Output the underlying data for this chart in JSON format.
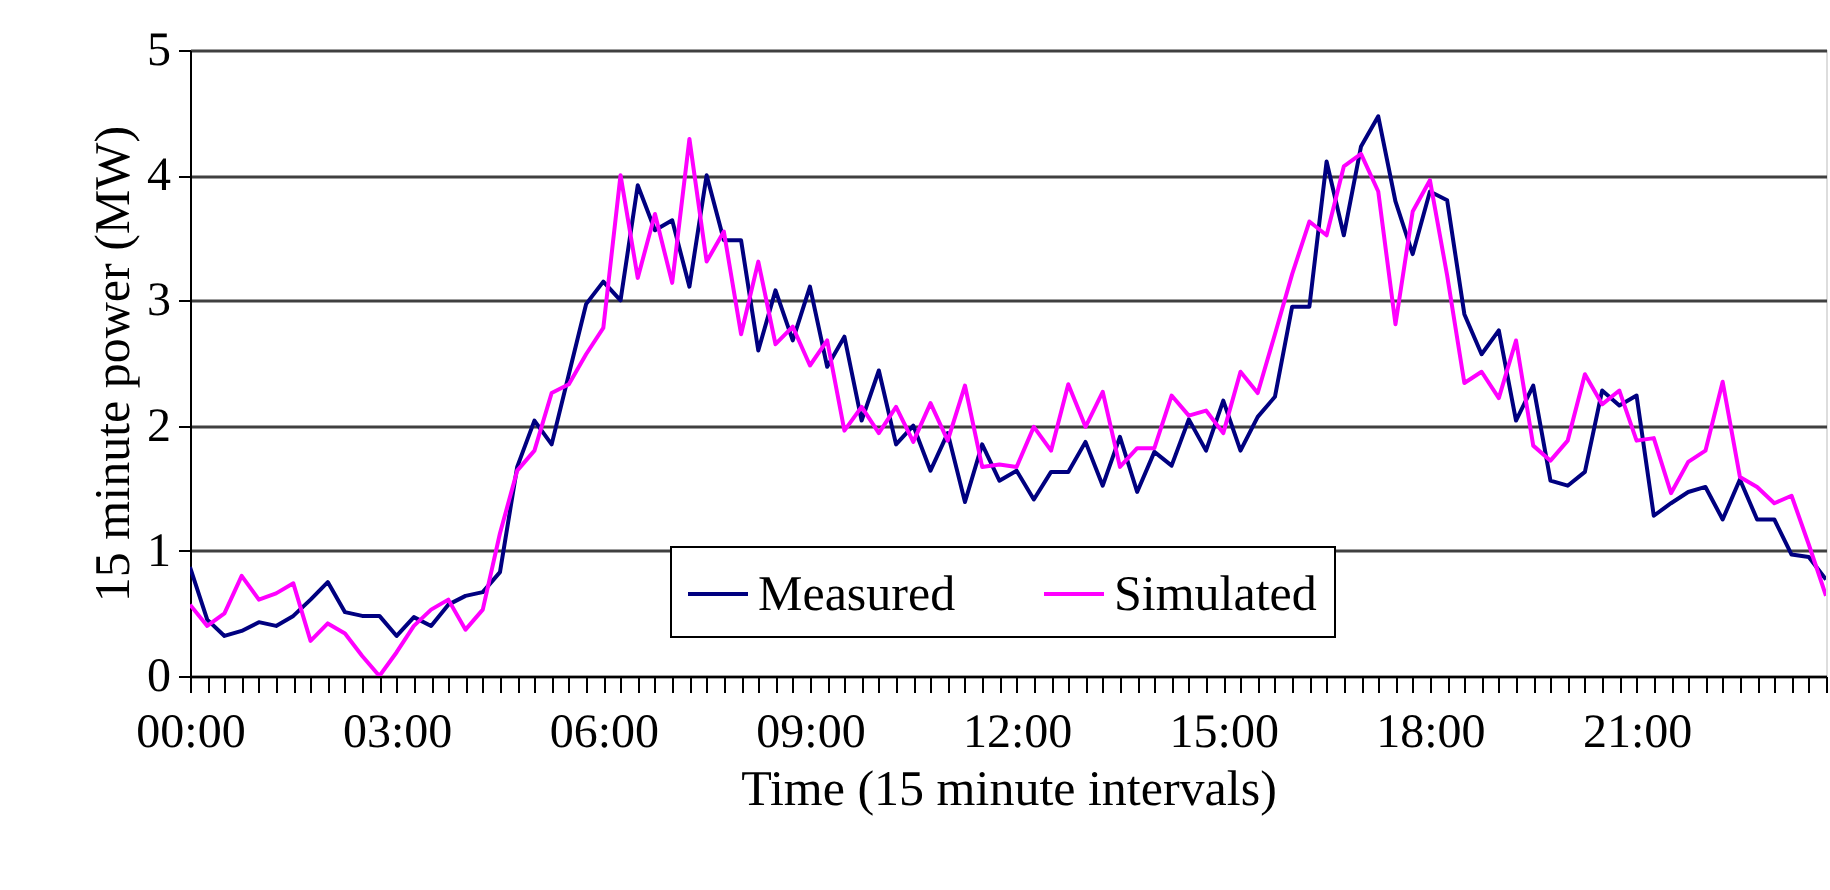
{
  "chart_data": {
    "type": "line",
    "xlabel": "Time (15 minute intervals)",
    "ylabel": "15 minute power (MW)",
    "categories": [
      "00:00",
      null,
      null,
      null,
      null,
      null,
      null,
      null,
      null,
      null,
      null,
      null,
      "03:00",
      null,
      null,
      null,
      null,
      null,
      null,
      null,
      null,
      null,
      null,
      null,
      "06:00",
      null,
      null,
      null,
      null,
      null,
      null,
      null,
      null,
      null,
      null,
      null,
      "09:00",
      null,
      null,
      null,
      null,
      null,
      null,
      null,
      null,
      null,
      null,
      null,
      "12:00",
      null,
      null,
      null,
      null,
      null,
      null,
      null,
      null,
      null,
      null,
      null,
      "15:00",
      null,
      null,
      null,
      null,
      null,
      null,
      null,
      null,
      null,
      null,
      null,
      "18:00",
      null,
      null,
      null,
      null,
      null,
      null,
      null,
      null,
      null,
      null,
      null,
      "21:00",
      null,
      null,
      null,
      null,
      null,
      null,
      null,
      null,
      null,
      null,
      null
    ],
    "series": [
      {
        "name": "Measured",
        "color": "#000080",
        "values": [
          0.87,
          0.45,
          0.32,
          0.36,
          0.43,
          0.4,
          0.48,
          0.61,
          0.75,
          0.51,
          0.48,
          0.48,
          0.32,
          0.47,
          0.4,
          0.57,
          0.64,
          0.67,
          0.83,
          1.67,
          2.04,
          1.85,
          2.41,
          2.97,
          3.15,
          3.0,
          3.92,
          3.56,
          3.64,
          3.11,
          4.0,
          3.48,
          3.48,
          2.6,
          3.08,
          2.68,
          3.11,
          2.47,
          2.71,
          2.04,
          2.44,
          1.85,
          2.0,
          1.64,
          1.94,
          1.39,
          1.85,
          1.56,
          1.64,
          1.41,
          1.63,
          1.63,
          1.87,
          1.52,
          1.91,
          1.47,
          1.79,
          1.68,
          2.05,
          1.8,
          2.2,
          1.8,
          2.07,
          2.23,
          2.95,
          2.95,
          4.11,
          3.52,
          4.23,
          4.47,
          3.79,
          3.37,
          3.87,
          3.8,
          2.89,
          2.57,
          2.76,
          2.04,
          2.32,
          1.56,
          1.52,
          1.63,
          2.28,
          2.16,
          2.24,
          1.28,
          1.38,
          1.47,
          1.51,
          1.25,
          1.57,
          1.25,
          1.25,
          0.97,
          0.95,
          0.77
        ]
      },
      {
        "name": "Simulated",
        "color": "#ff00ff",
        "values": [
          0.57,
          0.4,
          0.5,
          0.8,
          0.61,
          0.66,
          0.74,
          0.28,
          0.42,
          0.34,
          0.16,
          0.0,
          0.19,
          0.4,
          0.53,
          0.61,
          0.37,
          0.53,
          1.14,
          1.64,
          1.8,
          2.26,
          2.33,
          2.57,
          2.78,
          4.0,
          3.18,
          3.69,
          3.14,
          4.29,
          3.31,
          3.55,
          2.73,
          3.31,
          2.65,
          2.79,
          2.48,
          2.68,
          1.96,
          2.15,
          1.94,
          2.15,
          1.87,
          2.18,
          1.88,
          2.32,
          1.67,
          1.69,
          1.67,
          1.99,
          1.8,
          2.33,
          1.99,
          2.27,
          1.67,
          1.82,
          1.82,
          2.24,
          2.08,
          2.12,
          1.94,
          2.43,
          2.26,
          2.73,
          3.21,
          3.63,
          3.52,
          4.07,
          4.17,
          3.87,
          2.81,
          3.71,
          3.96,
          3.2,
          2.34,
          2.43,
          2.22,
          2.68,
          1.84,
          1.72,
          1.88,
          2.41,
          2.17,
          2.28,
          1.88,
          1.9,
          1.46,
          1.71,
          1.8,
          2.35,
          1.59,
          1.51,
          1.38,
          1.44,
          1.05,
          0.64
        ]
      }
    ],
    "ylim": [
      0,
      5
    ],
    "yticks": [
      0,
      1,
      2,
      3,
      4,
      5
    ],
    "grid": "y",
    "legend": "bottom",
    "marker": "none",
    "line_style": "solid"
  }
}
